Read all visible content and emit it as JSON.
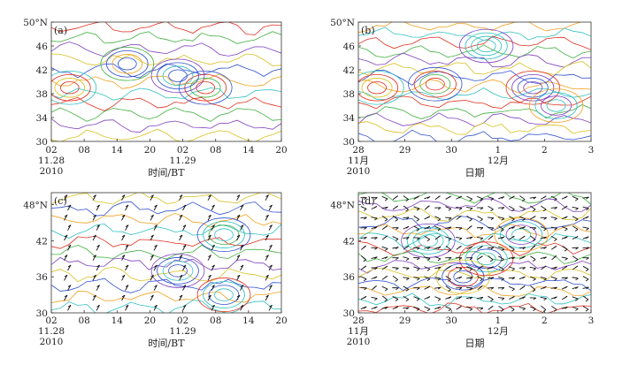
{
  "chart_data": [
    {
      "type": "contour",
      "panel_label": "(a)",
      "xlabel": "时间/BT",
      "x_ticks": [
        "02",
        "08",
        "14",
        "20",
        "02",
        "08",
        "14",
        "20"
      ],
      "x_date_labels": [
        {
          "at": 0,
          "text": "11.28"
        },
        {
          "at": 4,
          "text": "11.29"
        }
      ],
      "x_year": "2010",
      "y_ticks": [
        "30",
        "34",
        "38",
        "42",
        "46",
        "50°N"
      ],
      "ylim": [
        30,
        50
      ]
    },
    {
      "type": "contour",
      "panel_label": "(b)",
      "xlabel": "日期",
      "x_ticks": [
        "28",
        "29",
        "30",
        "1",
        "2",
        "3"
      ],
      "x_month_labels": [
        {
          "at": 0,
          "text": "11月"
        },
        {
          "at": 3,
          "text": "12月"
        }
      ],
      "x_year": "2010",
      "y_ticks": [
        "30",
        "34",
        "38",
        "42",
        "46",
        "50°N"
      ],
      "ylim": [
        30,
        50
      ]
    },
    {
      "type": "contour+wind",
      "panel_label": "(c)",
      "xlabel": "时间/BT",
      "x_ticks": [
        "02",
        "08",
        "14",
        "20",
        "02",
        "08",
        "14",
        "20"
      ],
      "x_date_labels": [
        {
          "at": 0,
          "text": "11.28"
        },
        {
          "at": 4,
          "text": "11.29"
        }
      ],
      "x_year": "2010",
      "y_ticks": [
        "30",
        "36",
        "42",
        "48°N"
      ],
      "ylim": [
        30,
        50
      ]
    },
    {
      "type": "contour+wind",
      "panel_label": "(d)",
      "xlabel": "日期",
      "x_ticks": [
        "28",
        "29",
        "30",
        "1",
        "2",
        "3"
      ],
      "x_month_labels": [
        {
          "at": 0,
          "text": "11月"
        },
        {
          "at": 3,
          "text": "12月"
        }
      ],
      "x_year": "2010",
      "y_ticks": [
        "30",
        "36",
        "42",
        "48°N"
      ],
      "ylim": [
        30,
        50
      ]
    }
  ],
  "colors": {
    "red": "#e03020",
    "orange": "#f0a020",
    "yellow": "#d8c020",
    "green": "#40b040",
    "cyan": "#30c0c0",
    "blue": "#3050d0",
    "purple": "#8040c0",
    "barb": "#111111"
  }
}
